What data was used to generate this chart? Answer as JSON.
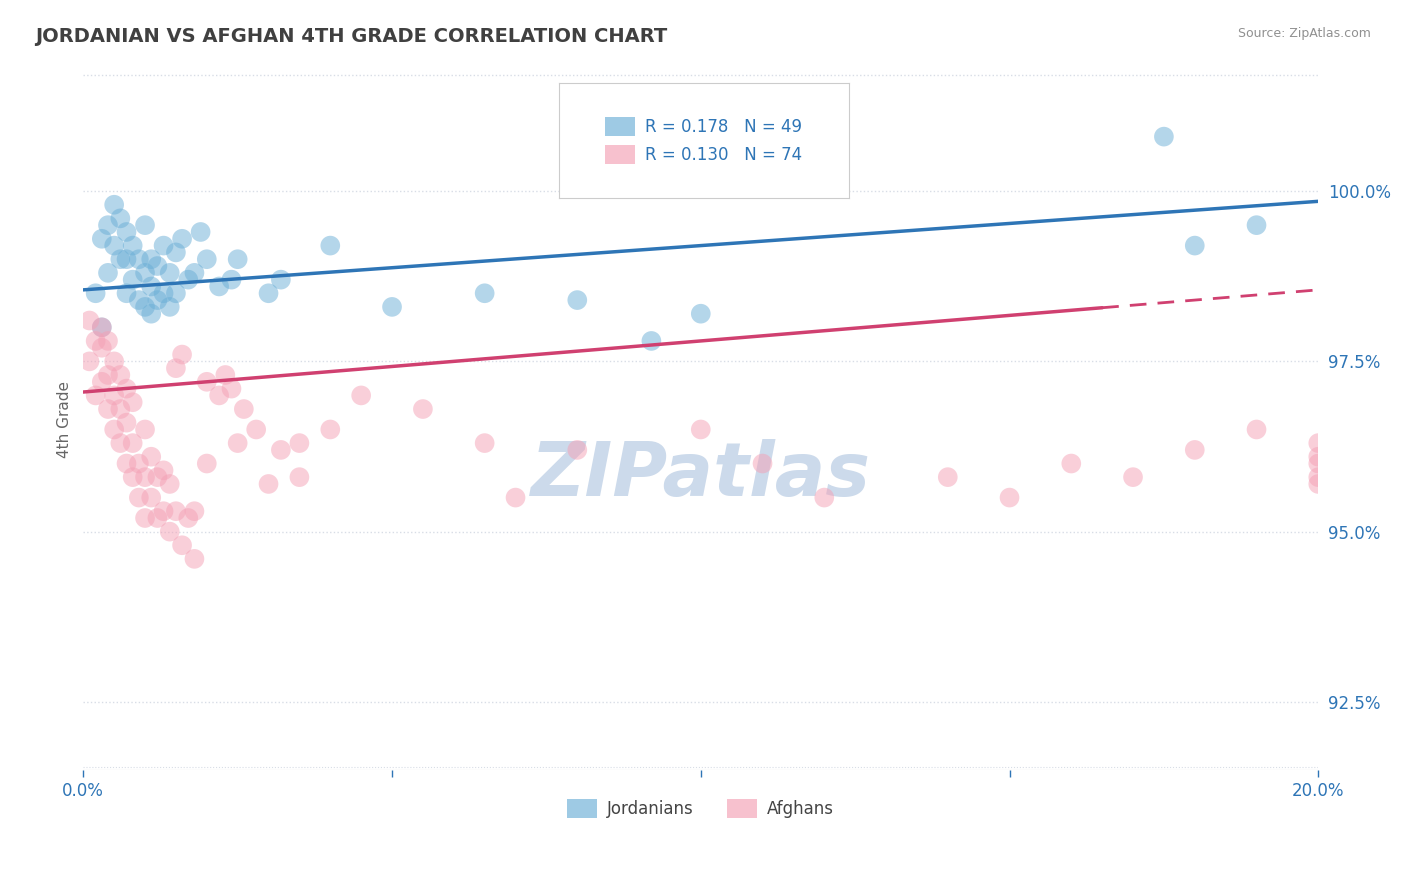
{
  "title": "JORDANIAN VS AFGHAN 4TH GRADE CORRELATION CHART",
  "source": "Source: ZipAtlas.com",
  "ylabel": "4th Grade",
  "xlim": [
    0.0,
    20.0
  ],
  "ylim": [
    91.5,
    101.8
  ],
  "yticks": [
    92.5,
    95.0,
    97.5,
    100.0
  ],
  "xticks": [
    0.0,
    5.0,
    10.0,
    15.0,
    20.0
  ],
  "xtick_labels": [
    "0.0%",
    "",
    "",
    "",
    "20.0%"
  ],
  "ytick_labels": [
    "92.5%",
    "95.0%",
    "97.5%",
    "100.0%"
  ],
  "blue_R": 0.178,
  "blue_N": 49,
  "pink_R": 0.13,
  "pink_N": 74,
  "blue_color": "#6aaed6",
  "pink_color": "#f4a0b5",
  "blue_line_color": "#2e75b6",
  "pink_line_color": "#d04070",
  "title_color": "#404040",
  "source_color": "#909090",
  "grid_color": "#d8dde6",
  "background_color": "#ffffff",
  "watermark_color": "#ccdaeb",
  "blue_line_x0": 0.0,
  "blue_line_y0": 98.55,
  "blue_line_x1": 20.0,
  "blue_line_y1": 99.85,
  "pink_line_x0": 0.0,
  "pink_line_y0": 97.05,
  "pink_line_x1": 20.0,
  "pink_line_y1": 98.55,
  "pink_solid_end": 16.5,
  "blue_x": [
    0.2,
    0.3,
    0.3,
    0.4,
    0.4,
    0.5,
    0.5,
    0.6,
    0.6,
    0.7,
    0.7,
    0.7,
    0.8,
    0.8,
    0.9,
    0.9,
    1.0,
    1.0,
    1.0,
    1.1,
    1.1,
    1.1,
    1.2,
    1.2,
    1.3,
    1.3,
    1.4,
    1.4,
    1.5,
    1.5,
    1.6,
    1.7,
    1.8,
    1.9,
    2.0,
    2.2,
    2.4,
    2.5,
    3.0,
    3.2,
    4.0,
    5.0,
    6.5,
    8.0,
    9.2,
    10.0,
    17.5,
    18.0,
    19.0
  ],
  "blue_y": [
    98.5,
    99.3,
    98.0,
    99.5,
    98.8,
    99.8,
    99.2,
    99.6,
    99.0,
    99.4,
    99.0,
    98.5,
    99.2,
    98.7,
    99.0,
    98.4,
    98.8,
    98.3,
    99.5,
    98.6,
    98.2,
    99.0,
    98.4,
    98.9,
    98.5,
    99.2,
    98.3,
    98.8,
    98.5,
    99.1,
    99.3,
    98.7,
    98.8,
    99.4,
    99.0,
    98.6,
    98.7,
    99.0,
    98.5,
    98.7,
    99.2,
    98.3,
    98.5,
    98.4,
    97.8,
    98.2,
    100.8,
    99.2,
    99.5
  ],
  "pink_x": [
    0.1,
    0.1,
    0.2,
    0.2,
    0.3,
    0.3,
    0.3,
    0.4,
    0.4,
    0.4,
    0.5,
    0.5,
    0.5,
    0.6,
    0.6,
    0.6,
    0.7,
    0.7,
    0.7,
    0.8,
    0.8,
    0.8,
    0.9,
    0.9,
    1.0,
    1.0,
    1.0,
    1.1,
    1.1,
    1.2,
    1.2,
    1.3,
    1.3,
    1.4,
    1.4,
    1.5,
    1.5,
    1.6,
    1.6,
    1.7,
    1.8,
    1.8,
    2.0,
    2.0,
    2.2,
    2.3,
    2.4,
    2.5,
    2.6,
    2.8,
    3.0,
    3.2,
    3.5,
    3.5,
    4.0,
    4.5,
    5.5,
    6.5,
    7.0,
    8.0,
    10.0,
    11.0,
    12.0,
    14.0,
    15.0,
    16.0,
    17.0,
    18.0,
    19.0,
    20.0,
    20.0,
    20.0,
    20.0,
    20.0
  ],
  "pink_y": [
    98.1,
    97.5,
    97.0,
    97.8,
    97.2,
    97.7,
    98.0,
    96.8,
    97.3,
    97.8,
    96.5,
    97.0,
    97.5,
    96.3,
    96.8,
    97.3,
    96.0,
    96.6,
    97.1,
    95.8,
    96.3,
    96.9,
    95.5,
    96.0,
    95.2,
    95.8,
    96.5,
    95.5,
    96.1,
    95.2,
    95.8,
    95.3,
    95.9,
    95.0,
    95.7,
    95.3,
    97.4,
    94.8,
    97.6,
    95.2,
    94.6,
    95.3,
    96.0,
    97.2,
    97.0,
    97.3,
    97.1,
    96.3,
    96.8,
    96.5,
    95.7,
    96.2,
    96.3,
    95.8,
    96.5,
    97.0,
    96.8,
    96.3,
    95.5,
    96.2,
    96.5,
    96.0,
    95.5,
    95.8,
    95.5,
    96.0,
    95.8,
    96.2,
    96.5,
    96.3,
    96.0,
    95.7,
    96.1,
    95.8
  ]
}
